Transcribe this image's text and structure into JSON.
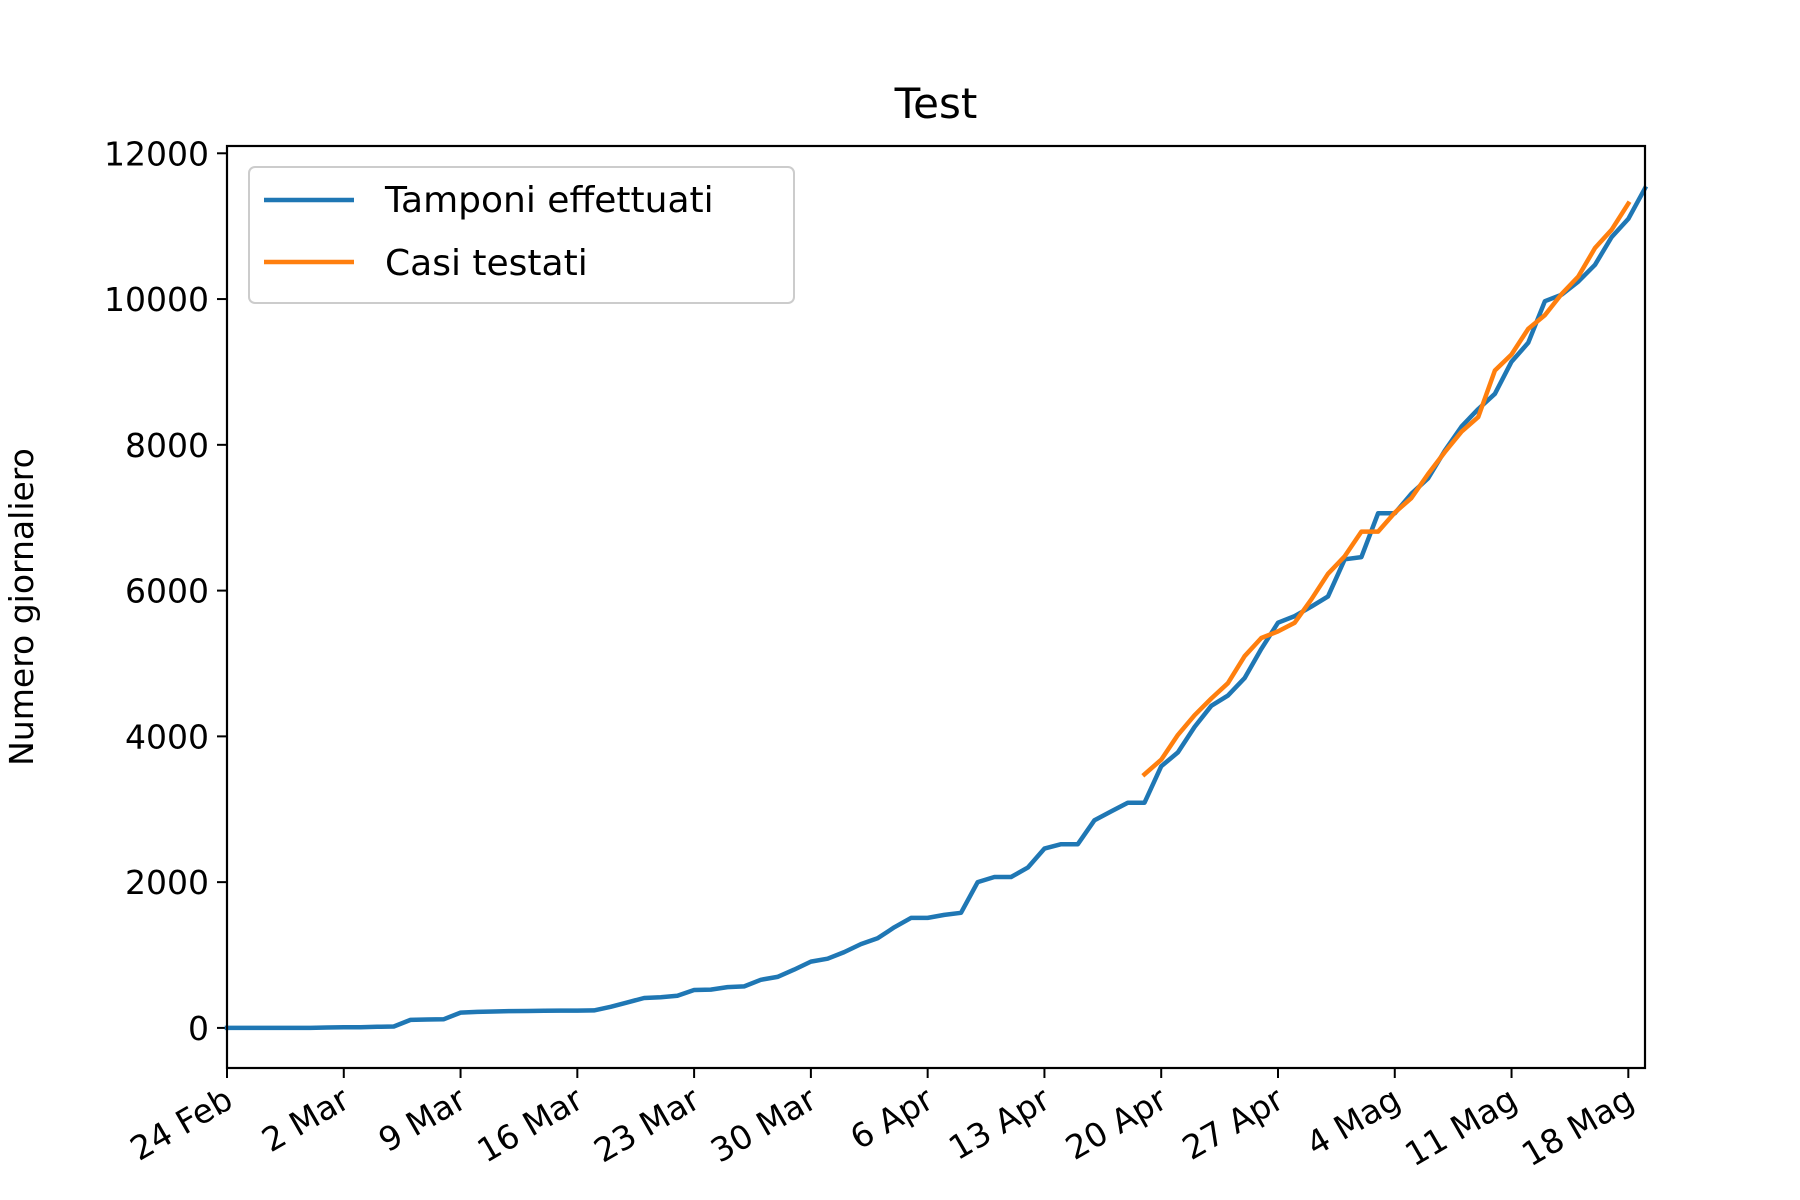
{
  "chart_data": {
    "type": "line",
    "title": "Test",
    "xlabel": "",
    "ylabel": "Numero giornaliero",
    "x_ticks": [
      {
        "day": 0,
        "label": "24 Feb"
      },
      {
        "day": 7,
        "label": "2 Mar"
      },
      {
        "day": 14,
        "label": "9 Mar"
      },
      {
        "day": 21,
        "label": "16 Mar"
      },
      {
        "day": 28,
        "label": "23 Mar"
      },
      {
        "day": 35,
        "label": "30 Mar"
      },
      {
        "day": 42,
        "label": "6 Apr"
      },
      {
        "day": 49,
        "label": "13 Apr"
      },
      {
        "day": 56,
        "label": "20 Apr"
      },
      {
        "day": 63,
        "label": "27 Apr"
      },
      {
        "day": 70,
        "label": "4 Mag"
      },
      {
        "day": 77,
        "label": "11 Mag"
      },
      {
        "day": 84,
        "label": "18 Mag"
      }
    ],
    "y_ticks": [
      0,
      2000,
      4000,
      6000,
      8000,
      10000,
      12000
    ],
    "xlim": [
      0,
      85
    ],
    "ylim": [
      -550,
      12100
    ],
    "grid": false,
    "legend_position": "top-left",
    "series": [
      {
        "name": "Tamponi effettuati",
        "color": "#1f77b4",
        "start_day": 0,
        "values": [
          0,
          0,
          0,
          0,
          0,
          0,
          5,
          10,
          10,
          15,
          20,
          110,
          115,
          120,
          210,
          220,
          225,
          230,
          232,
          235,
          237,
          238,
          240,
          290,
          350,
          410,
          420,
          440,
          520,
          525,
          560,
          570,
          660,
          700,
          800,
          910,
          950,
          1040,
          1150,
          1230,
          1380,
          1510,
          1510,
          1550,
          1580,
          2000,
          2070,
          2070,
          2200,
          2460,
          2520,
          2520,
          2850,
          2970,
          3090,
          3090,
          3590,
          3780,
          4130,
          4420,
          4560,
          4800,
          5200,
          5560,
          5650,
          5780,
          5920,
          6430,
          6460,
          7060,
          7060,
          7330,
          7540,
          7920,
          8250,
          8490,
          8700,
          9140,
          9400,
          9970,
          10060,
          10240,
          10470,
          10850,
          11100,
          11520
        ]
      },
      {
        "name": "Casi testati",
        "color": "#ff7f0e",
        "start_day": 55,
        "values": [
          3480,
          3680,
          4020,
          4290,
          4520,
          4730,
          5100,
          5350,
          5440,
          5560,
          5880,
          6230,
          6470,
          6810,
          6810,
          7070,
          7270,
          7600,
          7900,
          8180,
          8380,
          9020,
          9240,
          9590,
          9780,
          10070,
          10310,
          10700,
          10950,
          11310
        ]
      }
    ]
  }
}
